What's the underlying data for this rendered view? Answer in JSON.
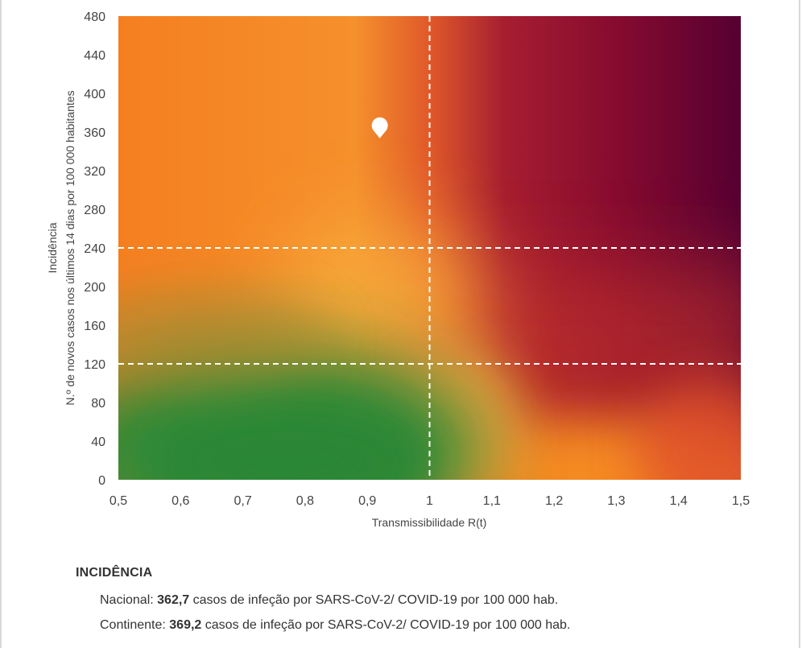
{
  "chart_data": {
    "type": "heatmap",
    "title": "",
    "xlabel": "Transmissibilidade R(t)",
    "ylabel_lines": [
      "Incidência",
      "N.º de novos casos nos últimos 14 dias por 100 000 habitantes"
    ],
    "xlim": [
      0.5,
      1.5
    ],
    "ylim": [
      0,
      480
    ],
    "x_ticks": [
      0.5,
      0.6,
      0.7,
      0.8,
      0.9,
      1.0,
      1.1,
      1.2,
      1.3,
      1.4,
      1.5
    ],
    "x_tick_labels": [
      "0,5",
      "0,6",
      "0,7",
      "0,8",
      "0,9",
      "1",
      "1,1",
      "1,2",
      "1,3",
      "1,4",
      "1,5"
    ],
    "y_ticks": [
      0,
      40,
      80,
      120,
      160,
      200,
      240,
      280,
      320,
      360,
      400,
      440,
      480
    ],
    "y_tick_labels": [
      "0",
      "40",
      "80",
      "120",
      "160",
      "200",
      "240",
      "280",
      "320",
      "360",
      "400",
      "440",
      "480"
    ],
    "threshold_lines": {
      "x": [
        1.0
      ],
      "y": [
        120,
        240
      ]
    },
    "risk_gradient_colors": {
      "low": "#2e8b37",
      "moderate": "#f7a83a",
      "high": "#f57f20",
      "very_high": "#8e0e2c",
      "extreme": "#590033"
    },
    "series": [
      {
        "values": [
          {
            "x": 0.92,
            "y": 366
          }
        ]
      }
    ]
  },
  "info": {
    "heading": "INCIDÊNCIA",
    "lines": [
      {
        "prefix": "Nacional: ",
        "value": "362,7",
        "suffix": " casos de infeção por SARS-CoV-2/ COVID-19 por 100 000 hab."
      },
      {
        "prefix": "Continente: ",
        "value": "369,2",
        "suffix": " casos de infeção por SARS-CoV-2/ COVID-19 por 100 000 hab."
      }
    ]
  }
}
